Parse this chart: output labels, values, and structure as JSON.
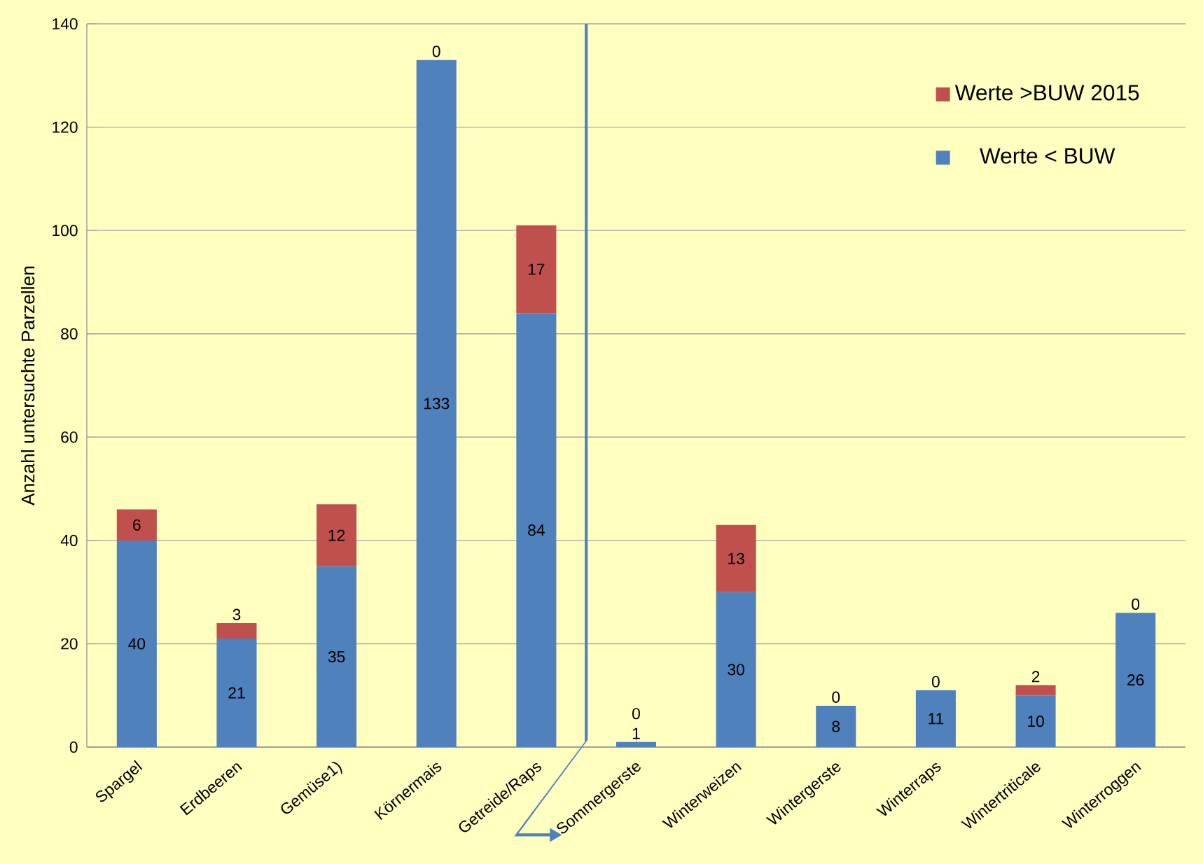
{
  "chart_data": {
    "type": "bar",
    "stacked": true,
    "ylabel": "Anzahl untersuchte Parzellen",
    "categories": [
      "Spargel",
      "Erdbeeren",
      "Gemüse1)",
      "Körnermais",
      "Getreide/Raps",
      "Sommergerste",
      "Winterweizen",
      "Wintergerste",
      "Winterraps",
      "Wintertriticale",
      "Winterroggen"
    ],
    "series": [
      {
        "name": "Werte < BUW",
        "color": "#4f81bd",
        "values": [
          40,
          21,
          35,
          133,
          84,
          1,
          30,
          8,
          11,
          10,
          26
        ]
      },
      {
        "name": "Werte >BUW 2015",
        "color": "#c0504d",
        "values": [
          6,
          3,
          12,
          0,
          17,
          0,
          13,
          0,
          0,
          2,
          0
        ]
      }
    ],
    "ylim": [
      0,
      140
    ],
    "yticks": [
      0,
      20,
      40,
      60,
      80,
      100,
      120,
      140
    ],
    "grid": "y",
    "legend": "top right",
    "data_labels": true
  }
}
